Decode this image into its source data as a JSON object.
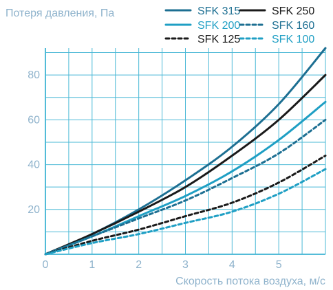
{
  "chart_data": {
    "type": "line",
    "ylabel": "Потеря давления, Па",
    "xlabel": "Скорость потока воздуха, м/с",
    "xlim": [
      0,
      6
    ],
    "ylim": [
      0,
      92
    ],
    "x_ticks": [
      0,
      1,
      2,
      3,
      4,
      5
    ],
    "x_tick_labels": [
      "0",
      "1",
      "2",
      "3",
      "4",
      "5"
    ],
    "y_ticks": [
      20,
      40,
      60,
      80
    ],
    "y_tick_labels": [
      "20",
      "40",
      "60",
      "80"
    ],
    "grid": true,
    "legend_position": "top-right",
    "series": [
      {
        "name": "SFK 315",
        "color": "#1d6f92",
        "dash": "solid",
        "x": [
          0,
          1,
          2,
          3,
          4,
          5,
          6
        ],
        "y": [
          0,
          9,
          20,
          33,
          48,
          67,
          92
        ]
      },
      {
        "name": "SFK 250",
        "color": "#1a1a1a",
        "dash": "solid",
        "x": [
          0,
          1,
          2,
          3,
          4,
          5,
          6
        ],
        "y": [
          0,
          9,
          19,
          30,
          44,
          60,
          80
        ]
      },
      {
        "name": "SFK 200",
        "color": "#1f9fc4",
        "dash": "solid",
        "x": [
          0,
          1,
          2,
          3,
          4,
          5,
          6
        ],
        "y": [
          0,
          8,
          17,
          26,
          37,
          51,
          68
        ]
      },
      {
        "name": "SFK 160",
        "color": "#1d6f92",
        "dash": "dashed",
        "x": [
          0,
          1,
          2,
          3,
          4,
          5,
          6
        ],
        "y": [
          0,
          8,
          16,
          24,
          34,
          45,
          60
        ]
      },
      {
        "name": "SFK 125",
        "color": "#1a1a1a",
        "dash": "dashed",
        "x": [
          0,
          1,
          2,
          3,
          4,
          5,
          6
        ],
        "y": [
          0,
          6,
          11,
          17,
          23,
          32,
          44
        ]
      },
      {
        "name": "SFK 100",
        "color": "#1f9fc4",
        "dash": "dashed",
        "x": [
          0,
          1,
          2,
          3,
          4,
          5,
          6
        ],
        "y": [
          0,
          5,
          9,
          14,
          19,
          27,
          38
        ]
      }
    ],
    "legend_order": [
      "SFK 315",
      "SFK 250",
      "SFK 200",
      "SFK 160",
      "SFK 125",
      "SFK 100"
    ]
  }
}
